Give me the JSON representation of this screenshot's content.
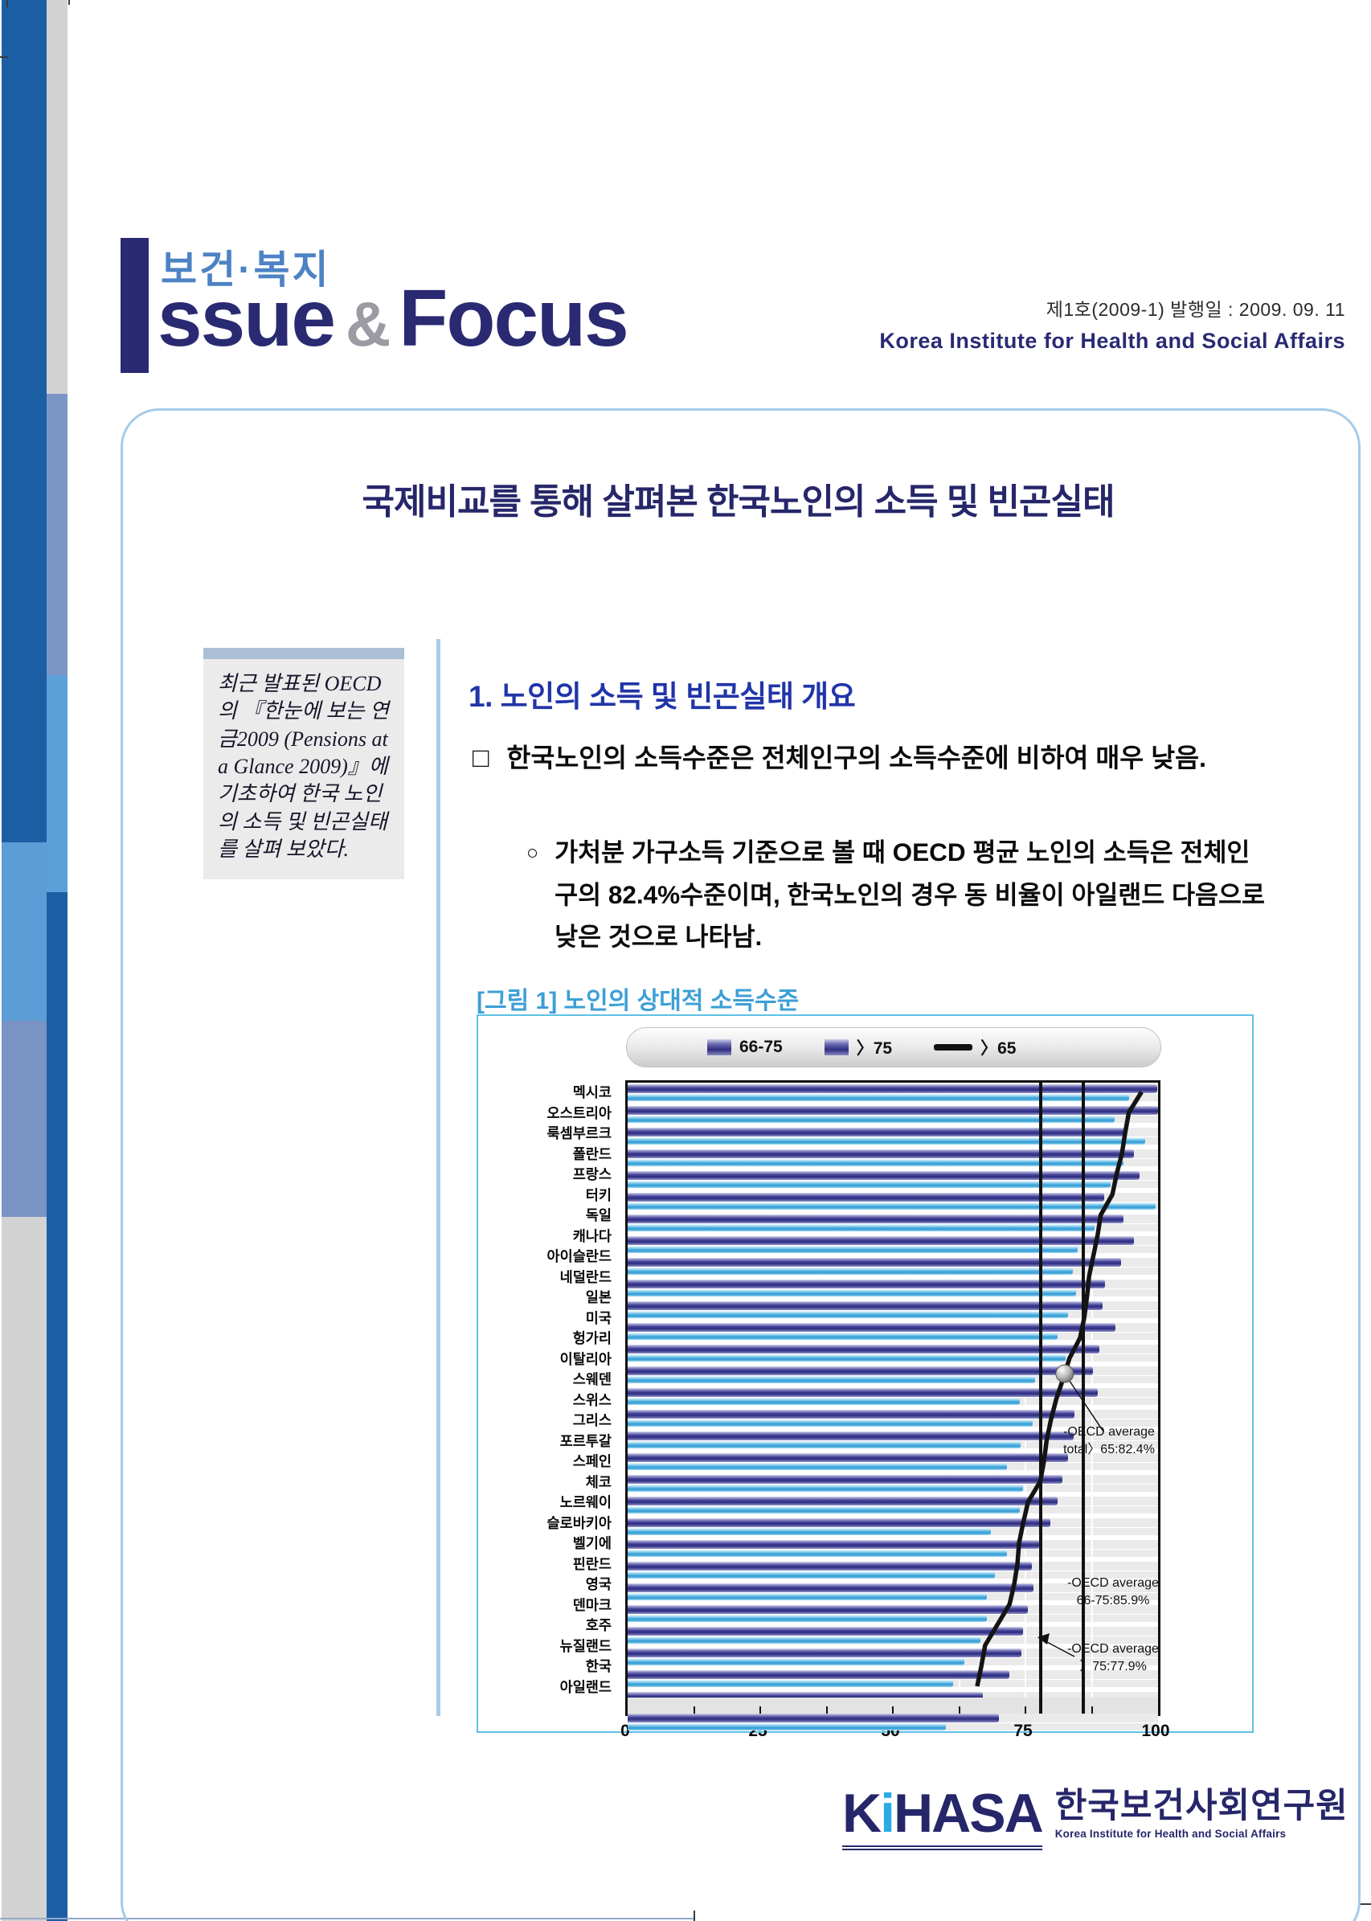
{
  "header": {
    "brand_kr": "보건·복지",
    "brand_issue": "ssue",
    "brand_amp": "&",
    "brand_focus": "Focus",
    "issue_no": "제1호(2009-1) 발행일 : 2009. 09. 11",
    "org_en": "Korea Institute for Health and Social Affairs"
  },
  "title": "국제비교를 통해 살펴본 한국노인의 소득 및 빈곤실태",
  "side_note": {
    "text": "최근 발표된 OECD의 『한눈에 보는 연금2009 (Pensions at a Glance 2009)』에 기초하여 한국 노인의 소득 및 빈곤실태를 살펴 보았다."
  },
  "section": {
    "heading": "1.  노인의 소득 및 빈곤실태 개요",
    "items": [
      {
        "bullet": "□",
        "text": "한국노인의 소득수준은 전체인구의 소득수준에 비하여 매우 낮음."
      },
      {
        "bullet": "○",
        "text": "가처분 가구소득 기준으로 볼 때 OECD 평균 노인의 소득은 전체인구의 82.4%수준이며, 한국노인의 경우 동 비율이 아일랜드 다음으로 낮은 것으로 나타남."
      }
    ]
  },
  "figure": {
    "caption": "[그림 1] 노인의 상대적 소득수준"
  },
  "chart_data": {
    "type": "bar",
    "orientation": "horizontal",
    "title": "노인의 상대적 소득수준",
    "xlabel": "",
    "ylabel": "",
    "xlim": [
      0,
      100
    ],
    "xticks": [
      0,
      25,
      50,
      75,
      100
    ],
    "grid": true,
    "legend_position": "top",
    "legend": [
      "66-75",
      "〉75",
      "〉65"
    ],
    "categories": [
      "멕시코",
      "오스트리아",
      "룩셈부르크",
      "폴란드",
      "프랑스",
      "터키",
      "독일",
      "캐나다",
      "아이슬란드",
      "네덜란드",
      "일본",
      "미국",
      "헝가리",
      "이탈리아",
      "스웨덴",
      "스위스",
      "그리스",
      "포르투갈",
      "스페인",
      "체코",
      "노르웨이",
      "슬로바키아",
      "벨기에",
      "핀란드",
      "영국",
      "덴마크",
      "호주",
      "뉴질랜드",
      "한국",
      "아일랜드"
    ],
    "series": [
      {
        "name": "66-75",
        "type": "bar",
        "color": "#3a3a8e",
        "values": [
          99.9,
          100.5,
          94.0,
          95.5,
          96.5,
          89.8,
          93.5,
          95.4,
          93.0,
          90.0,
          89.5,
          92.0,
          89.0,
          87.8,
          88.6,
          84.2,
          84.1,
          83.0,
          82.0,
          81.0,
          79.7,
          77.5,
          76.2,
          76.5,
          75.5,
          74.5,
          74.3,
          71.9,
          67.0,
          70.0
        ]
      },
      {
        "name": "〉75",
        "type": "bar",
        "color": "#45a8dc",
        "values": [
          94.5,
          91.8,
          97.5,
          93.5,
          91.0,
          99.5,
          88.0,
          84.8,
          84.0,
          84.5,
          83.1,
          81.0,
          82.5,
          76.8,
          74.0,
          76.3,
          74.1,
          71.5,
          74.5,
          74.0,
          68.5,
          71.5,
          69.2,
          67.8,
          67.7,
          66.5,
          63.5,
          61.3,
          64.0,
          60.0
        ]
      },
      {
        "name": "〉65",
        "type": "line",
        "color": "#141414",
        "values": [
          96.9,
          94.5,
          93.8,
          93.2,
          92.2,
          91.4,
          89.2,
          88.6,
          87.8,
          87.0,
          86.6,
          86.1,
          85.3,
          83.3,
          82.1,
          80.8,
          79.8,
          79.0,
          78.5,
          77.8,
          75.5,
          74.6,
          73.8,
          73.5,
          72.9,
          72.0,
          69.7,
          67.4,
          66.7,
          65.9
        ]
      }
    ],
    "annotations": [
      {
        "line1": "-OECD average",
        "line2": "total〉65:82.4%",
        "value": 82.4
      },
      {
        "line1": "-OECD average",
        "line2": "66-75:85.9%",
        "value": 85.9
      },
      {
        "line1": "-OECD average",
        "line2": "〉75:77.9%",
        "value": 77.9
      }
    ]
  },
  "footer": {
    "logo_k": "K",
    "logo_i": "i",
    "logo_rest": "HASA",
    "org_kr": "한국보건사회연구원",
    "org_en": "Korea Institute for Health and Social Affairs"
  },
  "colors": {
    "navy": "#26266a",
    "brand_blue": "#4d83c4",
    "section_blue": "#2135a8",
    "caption_blue": "#3c9fd6",
    "figure_border": "#5ec1e4",
    "bar_dark": "#3a3a8e",
    "bar_cyan": "#45a8dc",
    "line_black": "#141414"
  }
}
